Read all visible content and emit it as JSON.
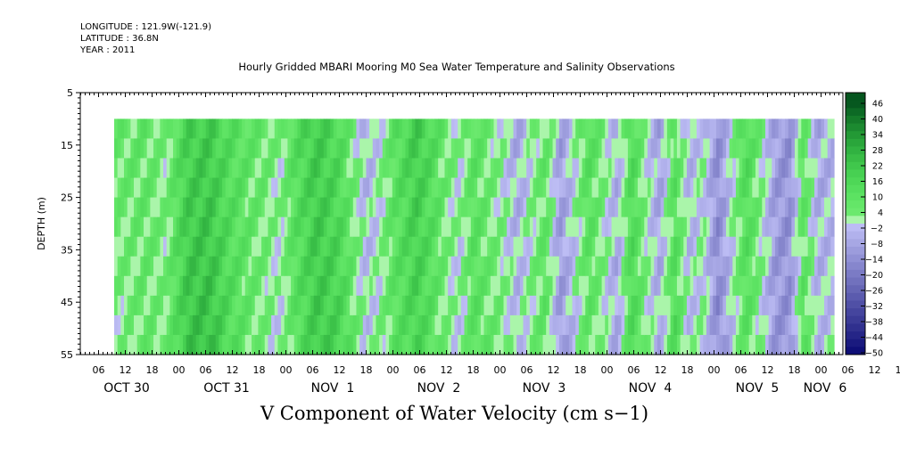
{
  "meta": {
    "longitude": "LONGITUDE : 121.9W(-121.9)",
    "latitude": "LATITUDE : 36.8N",
    "year": "YEAR : 2011"
  },
  "chart_data": {
    "type": "heatmap",
    "title": "Hourly Gridded MBARI Mooring M0 Sea Water Temperature and Salinity Observations",
    "variable_label": "V Component of Water Velocity (cm s−1)",
    "ylabel": "DEPTH (m)",
    "ylim": [
      5,
      55
    ],
    "y_inverted": true,
    "y_ticks": [
      5,
      15,
      25,
      35,
      45,
      55
    ],
    "x_hour_labels": [
      "06",
      "12",
      "18",
      "00",
      "06",
      "12",
      "18",
      "00",
      "06",
      "12",
      "18",
      "00",
      "06",
      "12",
      "18",
      "00",
      "06",
      "12",
      "18",
      "00",
      "06",
      "12",
      "18",
      "00",
      "06",
      "12",
      "18",
      "00",
      "06",
      "12",
      "18",
      "00"
    ],
    "x_day_labels": [
      "OCT 30",
      "OCT 31",
      "NOV  1",
      "NOV  2",
      "NOV  3",
      "NOV  4",
      "NOV  5",
      "NOV  6"
    ],
    "data_depth_range": [
      10,
      55
    ],
    "colorbar": {
      "labels": [
        "46",
        "40",
        "34",
        "28",
        "22",
        "16",
        "10",
        "4",
        "−2",
        "−8",
        "−14",
        "−20",
        "−26",
        "−32",
        "−38",
        "−44",
        "−50"
      ],
      "range": [
        -50,
        52
      ],
      "step": 3
    },
    "columns": [
      {
        "t": 0.0,
        "v": 8
      },
      {
        "t": 0.04,
        "v": 10
      },
      {
        "t": 0.07,
        "v": 4
      },
      {
        "t": 0.1,
        "v": 20
      },
      {
        "t": 0.13,
        "v": 22
      },
      {
        "t": 0.16,
        "v": 14
      },
      {
        "t": 0.19,
        "v": 10
      },
      {
        "t": 0.21,
        "v": 8
      },
      {
        "t": 0.23,
        "v": 4
      },
      {
        "t": 0.25,
        "v": 14
      },
      {
        "t": 0.28,
        "v": 22
      },
      {
        "t": 0.31,
        "v": 16
      },
      {
        "t": 0.33,
        "v": 6
      },
      {
        "t": 0.35,
        "v": -4
      },
      {
        "t": 0.37,
        "v": 2
      },
      {
        "t": 0.39,
        "v": 12
      },
      {
        "t": 0.42,
        "v": 22
      },
      {
        "t": 0.44,
        "v": 16
      },
      {
        "t": 0.46,
        "v": 8
      },
      {
        "t": 0.48,
        "v": 2
      },
      {
        "t": 0.5,
        "v": 12
      },
      {
        "t": 0.52,
        "v": 6
      },
      {
        "t": 0.54,
        "v": 2
      },
      {
        "t": 0.56,
        "v": -6
      },
      {
        "t": 0.58,
        "v": 2
      },
      {
        "t": 0.6,
        "v": 10
      },
      {
        "t": 0.62,
        "v": -8
      },
      {
        "t": 0.64,
        "v": 2
      },
      {
        "t": 0.66,
        "v": 14
      },
      {
        "t": 0.68,
        "v": 6
      },
      {
        "t": 0.7,
        "v": -4
      },
      {
        "t": 0.72,
        "v": 16
      },
      {
        "t": 0.74,
        "v": 2
      },
      {
        "t": 0.76,
        "v": -8
      },
      {
        "t": 0.78,
        "v": 12
      },
      {
        "t": 0.8,
        "v": -4
      },
      {
        "t": 0.82,
        "v": 2
      },
      {
        "t": 0.84,
        "v": -12
      },
      {
        "t": 0.86,
        "v": 2
      },
      {
        "t": 0.88,
        "v": 16
      },
      {
        "t": 0.9,
        "v": 6
      },
      {
        "t": 0.92,
        "v": -8
      },
      {
        "t": 0.94,
        "v": -12
      },
      {
        "t": 0.96,
        "v": 10
      },
      {
        "t": 0.98,
        "v": -6
      },
      {
        "t": 1.0,
        "v": -4
      }
    ]
  }
}
